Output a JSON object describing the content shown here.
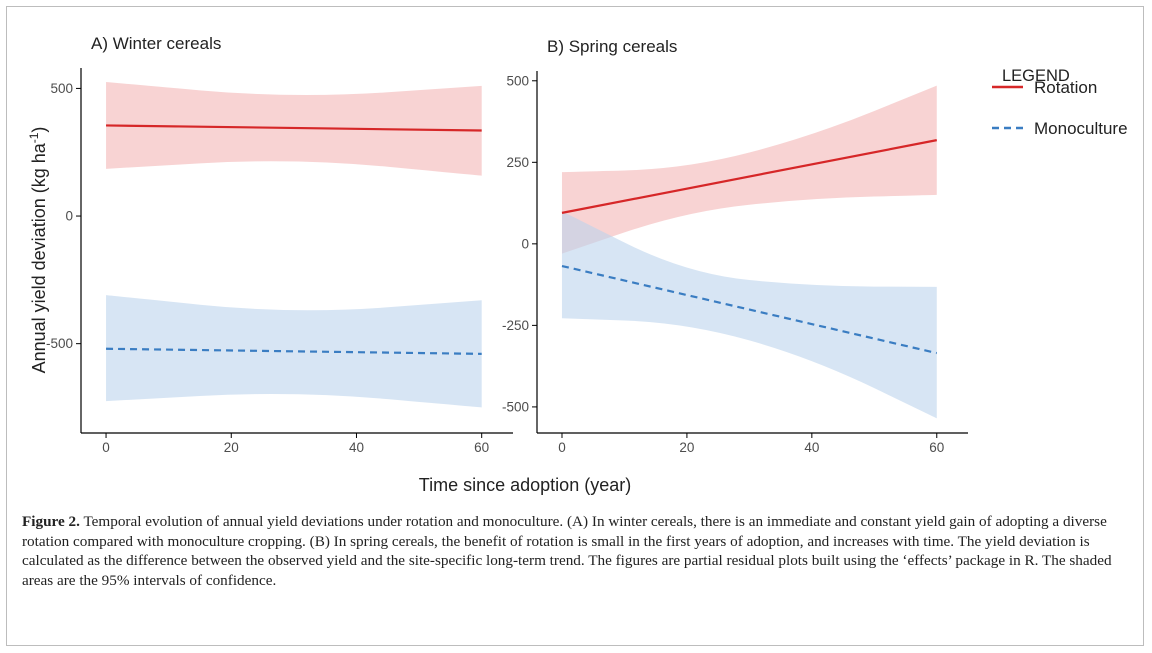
{
  "chart_data": [
    {
      "type": "line",
      "title": "A) Winter cereals",
      "xlabel": "Time since adoption (year)",
      "ylabel": "Annual yield deviation (kg ha⁻¹)",
      "xlim": [
        -4,
        65
      ],
      "ylim": [
        -850,
        580
      ],
      "xticks": [
        0,
        20,
        40,
        60
      ],
      "yticks": [
        -500,
        0,
        500
      ],
      "x_tick_labels": [
        "0",
        "20",
        "40",
        "60"
      ],
      "y_tick_labels": [
        "-500",
        "0",
        "500"
      ],
      "grid": false,
      "series": [
        {
          "name": "Rotation",
          "color": "#d62728",
          "band_color": "#f4b6b6",
          "dash": "solid",
          "x": [
            0,
            60
          ],
          "y": [
            355,
            335
          ],
          "lower": [
            {
              "x": 0,
              "y": 185
            },
            {
              "x": 30,
              "y": 228
            },
            {
              "x": 60,
              "y": 158
            }
          ],
          "upper": [
            {
              "x": 0,
              "y": 525
            },
            {
              "x": 30,
              "y": 460
            },
            {
              "x": 60,
              "y": 510
            }
          ]
        },
        {
          "name": "Monoculture",
          "color": "#3a7dc2",
          "band_color": "#bcd3ec",
          "dash": "dashed",
          "x": [
            0,
            60
          ],
          "y": [
            -520,
            -540
          ],
          "lower": [
            {
              "x": 0,
              "y": -725
            },
            {
              "x": 30,
              "y": -685
            },
            {
              "x": 60,
              "y": -750
            }
          ],
          "upper": [
            {
              "x": 0,
              "y": -310
            },
            {
              "x": 30,
              "y": -385
            },
            {
              "x": 60,
              "y": -330
            }
          ]
        }
      ]
    },
    {
      "type": "line",
      "title": "B) Spring cereals",
      "xlabel": "Time since adoption (year)",
      "ylabel": "",
      "xlim": [
        -4,
        65
      ],
      "ylim": [
        -580,
        530
      ],
      "xticks": [
        0,
        20,
        40,
        60
      ],
      "yticks": [
        -500,
        -250,
        0,
        250,
        500
      ],
      "x_tick_labels": [
        "0",
        "20",
        "40",
        "60"
      ],
      "y_tick_labels": [
        "-500",
        "-250",
        "0",
        "250",
        "500"
      ],
      "grid": false,
      "series": [
        {
          "name": "Rotation",
          "color": "#d62728",
          "band_color": "#f4b6b6",
          "dash": "solid",
          "x": [
            0,
            60
          ],
          "y": [
            95,
            318
          ],
          "lower": [
            {
              "x": 0,
              "y": -30
            },
            {
              "x": 20,
              "y": 100
            },
            {
              "x": 40,
              "y": 140
            },
            {
              "x": 60,
              "y": 150
            }
          ],
          "upper": [
            {
              "x": 0,
              "y": 220
            },
            {
              "x": 20,
              "y": 230
            },
            {
              "x": 40,
              "y": 330
            },
            {
              "x": 60,
              "y": 485
            }
          ]
        },
        {
          "name": "Monoculture",
          "color": "#3a7dc2",
          "band_color": "#bcd3ec",
          "dash": "dashed",
          "x": [
            0,
            60
          ],
          "y": [
            -68,
            -335
          ],
          "lower": [
            {
              "x": 0,
              "y": -228
            },
            {
              "x": 20,
              "y": -242
            },
            {
              "x": 40,
              "y": -350
            },
            {
              "x": 60,
              "y": -535
            }
          ],
          "upper": [
            {
              "x": 0,
              "y": 100
            },
            {
              "x": 20,
              "y": -92
            },
            {
              "x": 40,
              "y": -130
            },
            {
              "x": 60,
              "y": -132
            }
          ]
        }
      ]
    }
  ],
  "figure": {
    "ylabel_main": "Annual yield deviation (kg ha",
    "ylabel_sup": "-1",
    "ylabel_close": ")",
    "xlabel": "Time since adoption (year)"
  },
  "legend": {
    "title": "LEGEND",
    "items": [
      {
        "label": "Rotation",
        "color": "#d62728",
        "dash": "solid"
      },
      {
        "label": "Monoculture",
        "color": "#3a7dc2",
        "dash": "dashed"
      }
    ]
  },
  "caption": {
    "label": "Figure 2.",
    "text": " Temporal evolution of annual yield deviations under rotation and monoculture. (A) In winter cereals, there is an immediate and constant yield gain of adopting a diverse rotation compared with monoculture cropping. (B) In spring cereals, the benefit of rotation is small in the first years of adoption, and increases with time. The yield deviation is calculated as the difference between the observed yield and the site-specific long-term trend. The figures are partial residual plots built using the ‘effects’ package in R. The shaded areas are the 95% intervals of confidence."
  }
}
